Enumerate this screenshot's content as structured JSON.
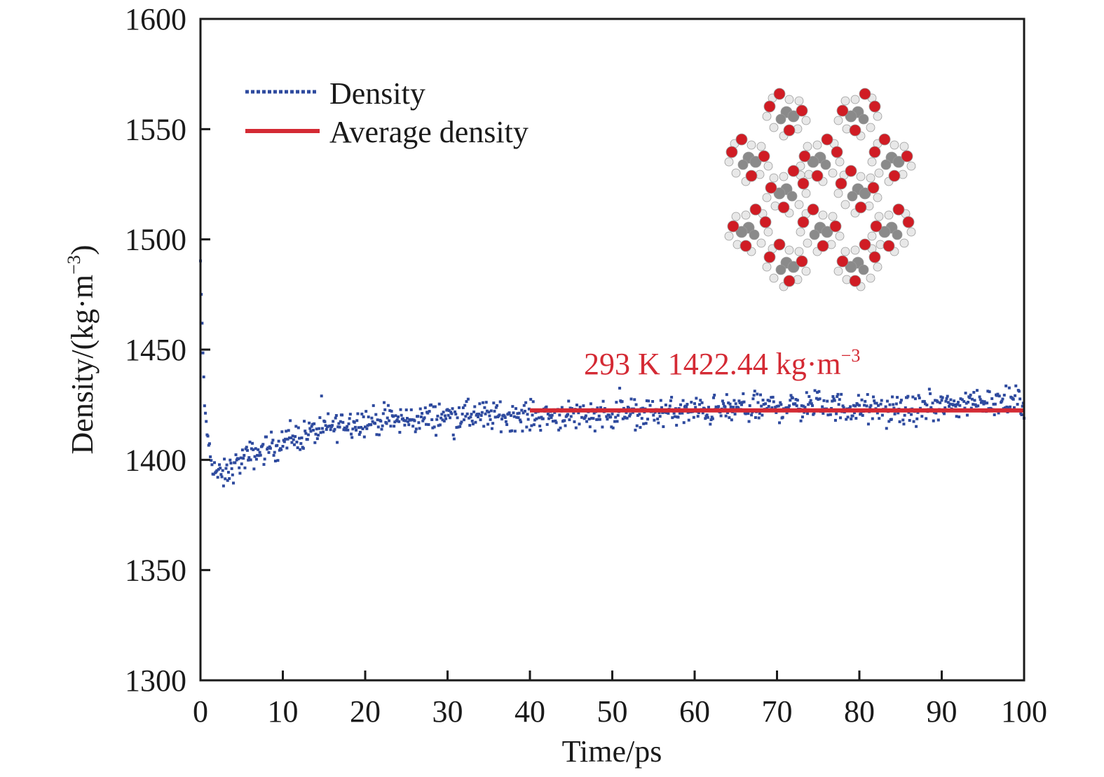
{
  "chart_data": {
    "type": "scatter",
    "title": "",
    "xlabel": "Time/ps",
    "ylabel": "Density/(kg·m",
    "ylabel_sup": "−3",
    "ylabel_close": ")",
    "xlim": [
      0,
      100
    ],
    "ylim": [
      1300,
      1600
    ],
    "x_ticks": [
      0,
      10,
      20,
      30,
      40,
      50,
      60,
      70,
      80,
      90,
      100
    ],
    "x_tick_labels": [
      "0",
      "10",
      "20",
      "30",
      "40",
      "50",
      "60",
      "70",
      "80",
      "90",
      "100"
    ],
    "y_ticks": [
      1300,
      1350,
      1400,
      1450,
      1500,
      1550,
      1600
    ],
    "y_tick_labels": [
      "1300",
      "1350",
      "1400",
      "1450",
      "1500",
      "1550",
      "1600"
    ],
    "grid": false,
    "legend": {
      "placement": "top-left",
      "entries": [
        {
          "label": "Density",
          "style": "dotted",
          "color": "#2e4a9e"
        },
        {
          "label": "Average density",
          "style": "solid",
          "color": "#d42a34"
        }
      ]
    },
    "series": [
      {
        "name": "Density",
        "kind": "scatter",
        "color": "#2e4a9e",
        "sampling_step_ps": 0.1,
        "noise_amplitude": 3.2,
        "trend": {
          "x": [
            0,
            0.2,
            0.5,
            1.0,
            1.5,
            2.0,
            2.5,
            3.5,
            5,
            8,
            10,
            13,
            16,
            18,
            22,
            25,
            30,
            35,
            40,
            50,
            60,
            65,
            70,
            75,
            80,
            85,
            90,
            95,
            100
          ],
          "y": [
            1490,
            1460,
            1425,
            1405,
            1398,
            1394,
            1392,
            1395,
            1400,
            1405,
            1408,
            1412,
            1415,
            1417,
            1418,
            1418,
            1420,
            1420,
            1420,
            1421,
            1422,
            1423,
            1424,
            1425,
            1423,
            1422,
            1424,
            1427,
            1426
          ]
        }
      },
      {
        "name": "Average density",
        "kind": "hline",
        "color": "#d42a34",
        "value": 1422.44,
        "x_range": [
          40,
          100
        ]
      }
    ],
    "annotations": [
      {
        "text": "293 K 1422.44 kg·m",
        "sup": "−3",
        "color": "#d42a34",
        "near": "average-line-above-right"
      }
    ],
    "inset": {
      "description": "molecular crystal structure image",
      "atom_colors": {
        "oxygen": "#d01c24",
        "carbon": "#8a8a8a",
        "hydrogen": "#e8e8e8"
      },
      "molecule_count": 12
    }
  }
}
